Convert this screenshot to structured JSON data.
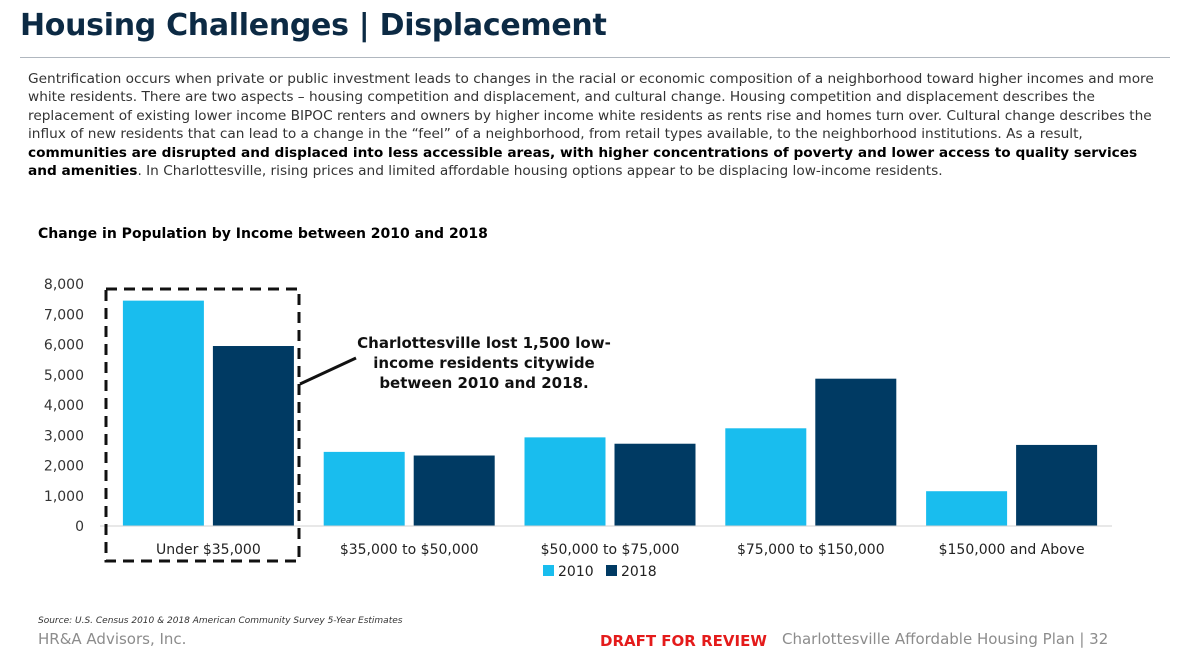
{
  "page": {
    "title": "Housing Challenges | Displacement",
    "intro": {
      "part1": "Gentrification occurs when private or public investment leads to changes in the racial or economic composition of a neighborhood toward higher incomes and more white residents. There are two aspects – housing competition and displacement, and cultural change. Housing competition and displacement describes the replacement of existing lower income BIPOC renters and owners by higher income white residents as rents rise and homes turn over. Cultural change describes the influx of new residents that can lead to a change in the “feel” of a neighborhood, from retail types available, to the neighborhood institutions. As a result, ",
      "bold": "communities are disrupted and displaced into less accessible areas, with higher concentrations of poverty and lower access to quality services and amenities",
      "part2": ". In Charlottesville, rising prices and limited affordable housing options appear to be displacing low-income residents."
    },
    "source": "Source: U.S. Census 2010 & 2018 American Community Survey 5-Year Estimates",
    "company": "HR&A Advisors, Inc.",
    "draft": "DRAFT FOR REVIEW",
    "plan": "Charlottesville Affordable Housing Plan | 32"
  },
  "chart_data": {
    "type": "bar",
    "title": "Change in Population by Income between 2010 and 2018",
    "categories": [
      "Under $35,000",
      "$35,000 to $50,000",
      "$50,000 to $75,000",
      "$75,000 to $150,000",
      "$150,000 and Above"
    ],
    "series": [
      {
        "name": "2010",
        "color": "#19bdee",
        "values": [
          7450,
          2450,
          2930,
          3230,
          1150
        ]
      },
      {
        "name": "2018",
        "color": "#003a63",
        "values": [
          5950,
          2330,
          2720,
          4870,
          2680
        ]
      }
    ],
    "ylim": [
      0,
      8000
    ],
    "yticks": [
      "0",
      "1,000",
      "2,000",
      "3,000",
      "4,000",
      "5,000",
      "6,000",
      "7,000",
      "8,000"
    ],
    "grid": false,
    "legend_position": "bottom",
    "annotation": {
      "lines": [
        "Charlottesville lost 1,500 low-",
        "income residents citywide",
        "between 2010 and 2018."
      ],
      "highlight_category": "Under $35,000"
    }
  }
}
